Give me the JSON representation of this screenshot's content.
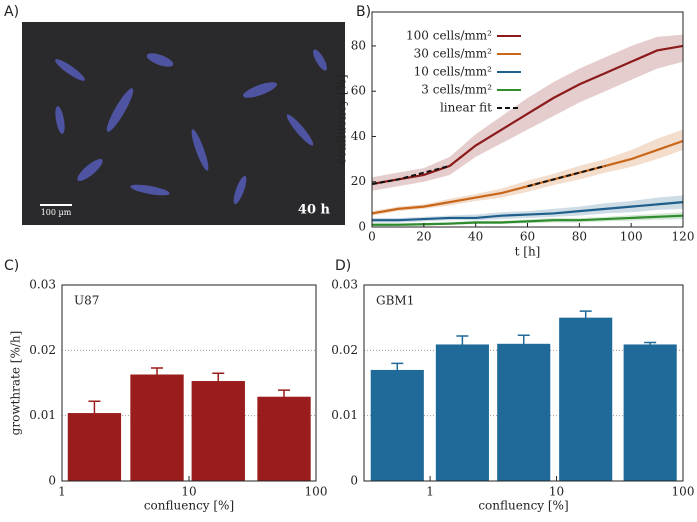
{
  "panel_labels": [
    "A)",
    "B)",
    "C)",
    "D)"
  ],
  "image": {
    "scale_bar": "100 µm",
    "time": "40 h"
  },
  "chart_data": [
    {
      "type": "line",
      "xlabel": "t [h]",
      "ylabel": "confluency [%]",
      "x": [
        0,
        10,
        20,
        30,
        40,
        50,
        60,
        70,
        80,
        90,
        100,
        110,
        120
      ],
      "xlim": [
        0,
        120
      ],
      "xticks": [
        0,
        20,
        40,
        60,
        80,
        100,
        120
      ],
      "ylim": [
        0,
        95
      ],
      "yticks": [
        0,
        20,
        40,
        60,
        80
      ],
      "legend": "upper-left",
      "series": [
        {
          "name": "100 cells/mm²",
          "color": "#8b1a1a",
          "values": [
            19,
            21,
            23,
            27,
            36,
            43,
            50,
            57,
            63,
            68,
            73,
            78,
            80
          ],
          "lower": [
            16,
            18,
            20,
            23,
            31,
            37,
            43,
            49,
            55,
            60,
            65,
            70,
            73
          ],
          "upper": [
            22,
            24,
            26,
            31,
            41,
            49,
            57,
            64,
            70,
            75,
            80,
            84,
            85
          ]
        },
        {
          "name": "30 cells/mm²",
          "color": "#c8661a",
          "values": [
            6,
            8,
            9,
            11,
            13,
            15,
            18,
            21,
            24,
            27,
            30,
            34,
            38
          ],
          "lower": [
            5,
            7,
            8,
            9.5,
            11.5,
            13,
            15.5,
            18.5,
            21,
            24,
            26.5,
            30,
            34
          ],
          "upper": [
            7,
            9,
            10,
            12.5,
            14.5,
            17,
            20.5,
            23.5,
            27,
            30,
            34,
            39,
            43
          ]
        },
        {
          "name": "10 cells/mm²",
          "color": "#1f5f8b",
          "values": [
            3,
            3,
            3.5,
            4,
            4,
            5,
            5.5,
            6,
            7,
            8,
            9,
            10,
            11
          ],
          "lower": [
            2,
            2,
            2.5,
            3,
            3,
            3.5,
            4,
            4.5,
            5,
            6,
            6.5,
            7.5,
            8
          ],
          "upper": [
            4,
            4,
            4.5,
            5,
            5.5,
            6.5,
            7,
            8,
            9,
            10.5,
            11.5,
            13,
            14
          ]
        },
        {
          "name": "3 cells/mm²",
          "color": "#2e8b2e",
          "values": [
            1,
            1,
            1.2,
            1.5,
            2,
            2,
            2.5,
            3,
            3,
            3.5,
            4,
            4.5,
            5
          ],
          "lower": [
            0.5,
            0.5,
            0.7,
            1,
            1.3,
            1.3,
            1.7,
            2,
            2,
            2.5,
            2.8,
            3.2,
            3.5
          ],
          "upper": [
            1.5,
            1.5,
            1.8,
            2,
            2.7,
            2.7,
            3.3,
            4,
            4,
            4.5,
            5.2,
            5.8,
            6.5
          ]
        },
        {
          "name": "linear fit",
          "color": "#111111",
          "dashed": true,
          "values": [
            19,
            21,
            24,
            27,
            null,
            null,
            18,
            21,
            24,
            27,
            null,
            null,
            null
          ]
        }
      ]
    },
    {
      "type": "bar",
      "title": "U87",
      "xlabel": "confluency [%]",
      "ylabel": "growthrate [%/h]",
      "color": "#9b1c1c",
      "xlog": true,
      "x": [
        1.8,
        5.6,
        17,
        56
      ],
      "values": [
        0.0104,
        0.0163,
        0.0153,
        0.0129
      ],
      "errors": [
        0.0018,
        0.001,
        0.0012,
        0.001
      ],
      "xlim": [
        1,
        100
      ],
      "xticks": [
        1,
        10,
        100
      ],
      "ylim": [
        0,
        0.03
      ],
      "yticks": [
        0,
        0.01,
        0.02,
        0.03
      ],
      "grid": true
    },
    {
      "type": "bar",
      "title": "GBM1",
      "xlabel": "confluency [%]",
      "color": "#1f6a99",
      "xlog": true,
      "x": [
        0.55,
        1.8,
        5.5,
        17,
        55
      ],
      "values": [
        0.017,
        0.0209,
        0.021,
        0.025,
        0.0209
      ],
      "errors": [
        0.001,
        0.0013,
        0.0013,
        0.001,
        0.0003
      ],
      "xlim": [
        0.3,
        100
      ],
      "xticks": [
        1,
        10,
        100
      ],
      "ylim": [
        0,
        0.03
      ],
      "yticks": [
        0,
        0.01,
        0.02,
        0.03
      ],
      "grid": true
    }
  ]
}
